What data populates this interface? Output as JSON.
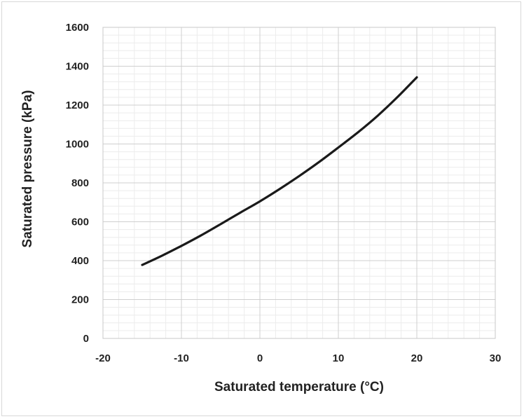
{
  "chart_data": {
    "type": "line",
    "title": "",
    "xlabel": "Saturated temperature (°C)",
    "ylabel": "Saturated pressure (kPa)",
    "xlim": [
      -20,
      30
    ],
    "ylim": [
      0,
      1600
    ],
    "x_ticks": [
      -20,
      -10,
      0,
      10,
      20,
      30
    ],
    "y_ticks": [
      0,
      200,
      400,
      600,
      800,
      1000,
      1200,
      1400,
      1600
    ],
    "x_tick_labels": [
      "-20",
      "-10",
      "0",
      "10",
      "20",
      "30"
    ],
    "y_tick_labels": [
      "0",
      "200",
      "400",
      "600",
      "800",
      "1000",
      "1200",
      "1400",
      "1600"
    ],
    "grid": true,
    "minor_grid": true,
    "legend": "none",
    "line_color": "#1a1a1a",
    "series": [
      {
        "x": [
          -15,
          -12.5,
          -10,
          -7.5,
          -5,
          -2.5,
          0,
          2.5,
          5,
          7.5,
          10,
          12.5,
          15,
          17.5,
          20
        ],
        "y": [
          378,
          425,
          476,
          530,
          588,
          647,
          705,
          768,
          835,
          906,
          982,
          1060,
          1145,
          1240,
          1343
        ]
      }
    ]
  }
}
